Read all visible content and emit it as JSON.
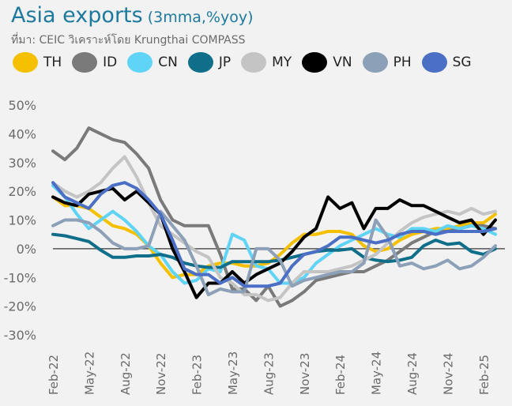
{
  "header": {
    "title": "Asia exports",
    "subtitle": "(3mma,%yoy)",
    "source": "ที่มา: CEIC วิเคราะห์โดย Krungthai COMPASS"
  },
  "chart_data": {
    "type": "line",
    "ylim": [
      -30,
      50
    ],
    "yticks": [
      -30,
      -20,
      -10,
      0,
      10,
      20,
      30,
      40,
      50
    ],
    "ytick_labels": [
      "-30%",
      "-20%",
      "-10%",
      "0%",
      "10%",
      "20%",
      "30%",
      "40%",
      "50%"
    ],
    "x_labels": [
      "Feb-22",
      "May-22",
      "Aug-22",
      "Nov-22",
      "Feb-23",
      "May-23",
      "Aug-23",
      "Nov-23",
      "Feb-24",
      "May-24",
      "Aug-24",
      "Nov-24",
      "Feb-25"
    ],
    "x_label_every": 3,
    "legend_position": "top",
    "series": [
      {
        "name": "TH",
        "color": "#f5c000",
        "width": 4,
        "values": [
          18,
          15,
          15,
          14,
          11,
          8,
          7,
          5,
          1,
          -5,
          -10,
          -9,
          -9,
          -6,
          -5,
          -5,
          -6,
          -6,
          -5,
          -2,
          2,
          5,
          5,
          6,
          6,
          5,
          1,
          -1,
          0,
          3,
          5,
          6,
          7,
          7,
          8,
          9,
          9,
          12
        ]
      },
      {
        "name": "ID",
        "color": "#7a7a7a",
        "width": 4,
        "values": [
          34,
          31,
          35,
          42,
          40,
          38,
          37,
          33,
          28,
          17,
          10,
          8,
          8,
          8,
          -2,
          -14,
          -14,
          -18,
          -13,
          -20,
          -18,
          -15,
          -11,
          -10,
          -9,
          -8,
          -8,
          -6,
          -4,
          -1,
          2,
          4,
          6,
          6,
          7,
          8,
          8,
          7
        ]
      },
      {
        "name": "CN",
        "color": "#5fd4f6",
        "width": 4,
        "values": [
          22,
          18,
          12,
          7,
          10,
          13,
          10,
          6,
          1,
          -2,
          -8,
          -12,
          -11,
          -7,
          -8,
          5,
          3,
          -6,
          -7,
          -12,
          -12,
          -10,
          -5,
          -2,
          1,
          3,
          5,
          7,
          5,
          4,
          7,
          7,
          6,
          8,
          7,
          8,
          7,
          5
        ]
      },
      {
        "name": "JP",
        "color": "#0f6e8a",
        "width": 4,
        "values": [
          5,
          4.5,
          3.5,
          2.5,
          -0.5,
          -3,
          -3,
          -2.5,
          -2.5,
          -2,
          -3,
          -5,
          -6,
          -6.5,
          -6.5,
          -4.5,
          -4.5,
          -4.5,
          -4.5,
          -4,
          -3,
          -2,
          -1,
          -0.5,
          -0.5,
          0,
          -3,
          -4,
          -4.5,
          -4,
          -3,
          1,
          3,
          1.5,
          2,
          -1,
          -2,
          0
        ]
      },
      {
        "name": "MY",
        "color": "#c4c4c4",
        "width": 4,
        "values": [
          23,
          20,
          18,
          20,
          23,
          28,
          32,
          25,
          16,
          8,
          5,
          2,
          -1,
          -3,
          -10,
          -12,
          -16,
          -16,
          -18,
          -17,
          -12,
          -8,
          -8,
          -8,
          -7,
          -6,
          -4,
          -2,
          2,
          6,
          9,
          11,
          12,
          13,
          12,
          14,
          12,
          13
        ]
      },
      {
        "name": "VN",
        "color": "#000000",
        "width": 4,
        "values": [
          18,
          16,
          15,
          19,
          20,
          21,
          17,
          20,
          16,
          12,
          0,
          -8,
          -17,
          -12,
          -12,
          -8,
          -12,
          -9,
          -7,
          -5,
          -1,
          4,
          7,
          18,
          14,
          16,
          7,
          14,
          14,
          17,
          15,
          15,
          13,
          11,
          9,
          10,
          5,
          10
        ]
      },
      {
        "name": "PH",
        "color": "#8ca0b8",
        "width": 4,
        "values": [
          8,
          10,
          10,
          9,
          6,
          2,
          0,
          0,
          1,
          13,
          8,
          3,
          -6,
          -16,
          -14,
          -15,
          -15,
          0,
          0,
          -4,
          -13,
          -11,
          -10,
          -9,
          -8,
          -8,
          -5,
          10,
          4,
          -6,
          -5,
          -7,
          -6,
          -4,
          -7,
          -6,
          -3,
          1
        ]
      },
      {
        "name": "SG",
        "color": "#4a6fc4",
        "width": 4,
        "values": [
          23,
          18,
          16,
          14,
          19,
          22,
          23,
          21,
          17,
          12,
          3,
          -7,
          -9,
          -9,
          -12,
          -10,
          -13,
          -13,
          -13,
          -12,
          -6,
          -2,
          -1,
          1,
          4,
          4,
          3,
          2,
          3,
          5,
          6,
          6,
          5,
          6,
          6,
          6,
          6,
          7
        ]
      }
    ]
  }
}
